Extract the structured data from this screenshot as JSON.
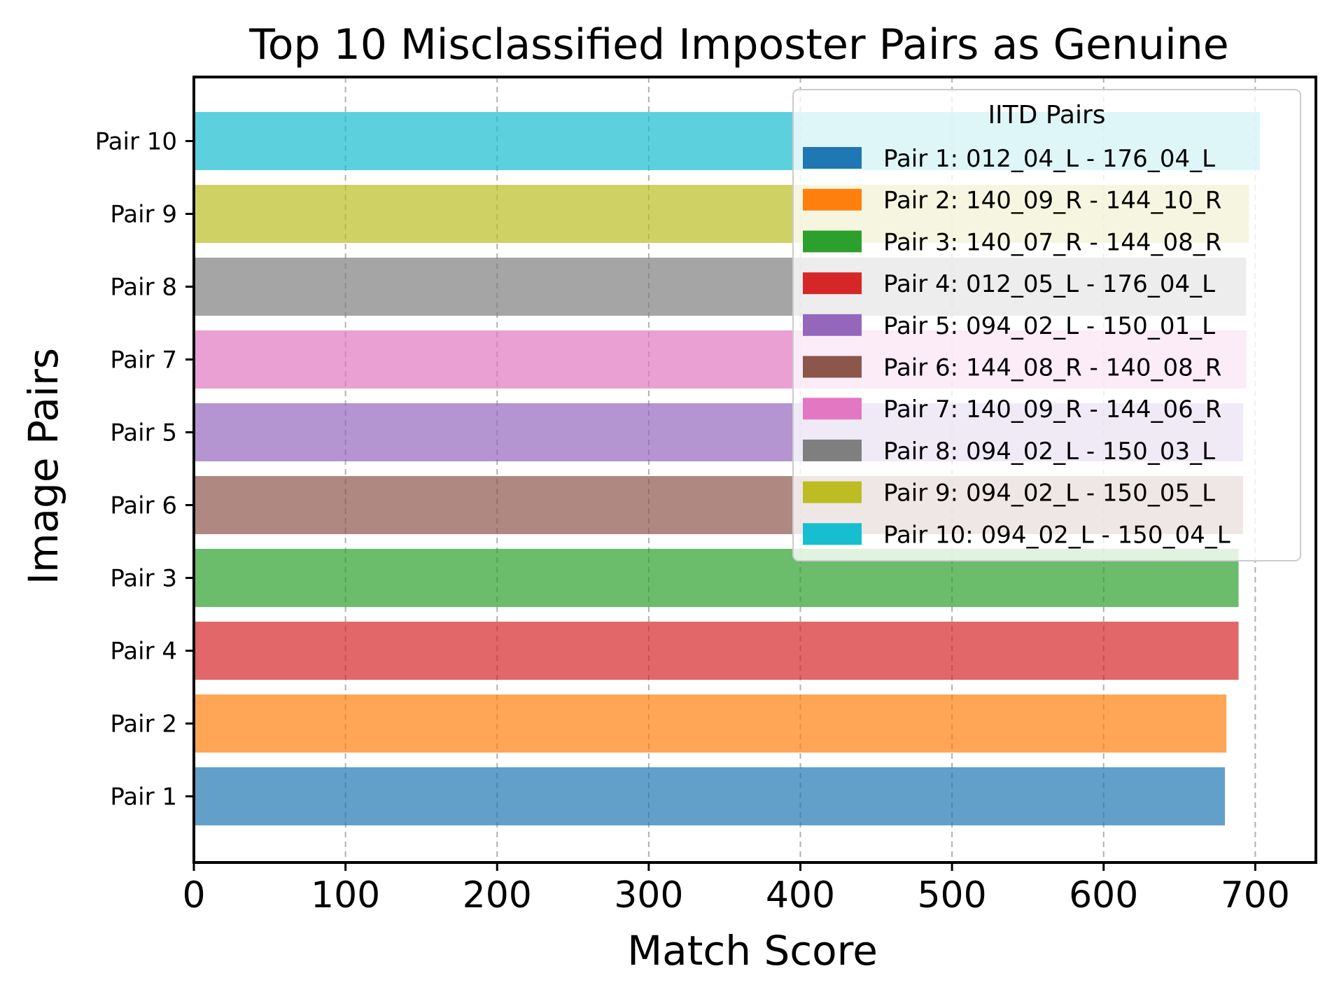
{
  "chart_data": {
    "type": "bar",
    "orientation": "horizontal",
    "title": "Top 10 Misclassified Imposter Pairs as Genuine",
    "xlabel": "Match Score",
    "ylabel": "Image Pairs",
    "xlim": [
      0,
      740
    ],
    "x_ticks": [
      0,
      100,
      200,
      300,
      400,
      500,
      600,
      700
    ],
    "grid": "x, dashed",
    "legend": {
      "title": "IITD Pairs",
      "placement": "top-right",
      "entries": [
        {
          "label": "Pair 1: 012_04_L - 176_04_L",
          "color": "#1f77b4"
        },
        {
          "label": "Pair 2: 140_09_R - 144_10_R",
          "color": "#ff7f0e"
        },
        {
          "label": "Pair 3: 140_07_R - 144_08_R",
          "color": "#2ca02c"
        },
        {
          "label": "Pair 4: 012_05_L - 176_04_L",
          "color": "#d62728"
        },
        {
          "label": "Pair 5: 094_02_L - 150_01_L",
          "color": "#9467bd"
        },
        {
          "label": "Pair 6: 144_08_R - 140_08_R",
          "color": "#8c564b"
        },
        {
          "label": "Pair 7: 140_09_R - 144_06_R",
          "color": "#e377c2"
        },
        {
          "label": "Pair 8: 094_02_L - 150_03_L",
          "color": "#7f7f7f"
        },
        {
          "label": "Pair 9: 094_02_L - 150_05_L",
          "color": "#bcbd22"
        },
        {
          "label": "Pair 10: 094_02_L - 150_04_L",
          "color": "#17becf"
        }
      ]
    },
    "categories_bottom_to_top": [
      "Pair 1",
      "Pair 2",
      "Pair 4",
      "Pair 3",
      "Pair 6",
      "Pair 5",
      "Pair 7",
      "Pair 8",
      "Pair 9",
      "Pair 10"
    ],
    "values": [
      680,
      681,
      689,
      689,
      692,
      692,
      694,
      694,
      696,
      703
    ],
    "colors": [
      "#1f77b4",
      "#ff7f0e",
      "#d62728",
      "#2ca02c",
      "#8c564b",
      "#9467bd",
      "#e377c2",
      "#7f7f7f",
      "#bcbd22",
      "#17becf"
    ],
    "bar_alpha": 0.7
  }
}
